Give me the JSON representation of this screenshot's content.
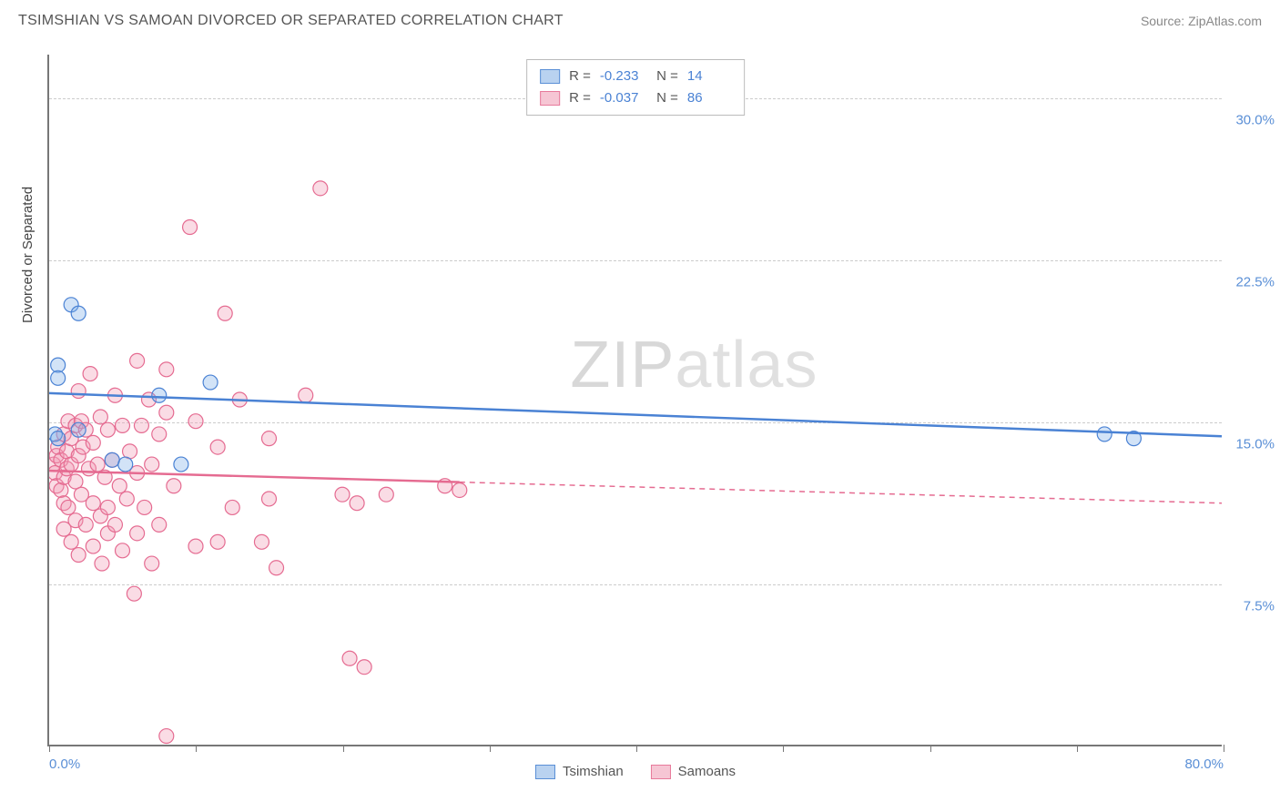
{
  "title": "TSIMSHIAN VS SAMOAN DIVORCED OR SEPARATED CORRELATION CHART",
  "source": "Source: ZipAtlas.com",
  "watermark_bold": "ZIP",
  "watermark_thin": "atlas",
  "chart": {
    "type": "scatter",
    "background_color": "#ffffff",
    "grid_color": "#cccccc",
    "axis_color": "#777777",
    "tick_label_color": "#5a8fd6",
    "text_color": "#444444",
    "ylabel": "Divorced or Separated",
    "xlim": [
      0,
      80
    ],
    "ylim": [
      0,
      32
    ],
    "yticks": [
      {
        "v": 7.5,
        "label": "7.5%"
      },
      {
        "v": 15.0,
        "label": "15.0%"
      },
      {
        "v": 22.5,
        "label": "22.5%"
      },
      {
        "v": 30.0,
        "label": "30.0%"
      }
    ],
    "xtick_positions": [
      0,
      10,
      20,
      30,
      40,
      50,
      60,
      70,
      80
    ],
    "xtick_labels": {
      "0": "0.0%",
      "80": "80.0%"
    },
    "stats_legend": [
      {
        "sw_fill": "#b9d2f0",
        "sw_border": "#5a8fd6",
        "r": "-0.233",
        "n": "14"
      },
      {
        "sw_fill": "#f6c6d4",
        "sw_border": "#e77a9b",
        "r": "-0.037",
        "n": "86"
      }
    ],
    "series_legend": [
      {
        "label": "Tsimshian",
        "sw_fill": "#b9d2f0",
        "sw_border": "#5a8fd6"
      },
      {
        "label": "Samoans",
        "sw_fill": "#f6c6d4",
        "sw_border": "#e77a9b"
      }
    ],
    "marker_radius": 8,
    "series": {
      "tsimshian": {
        "fill": "#7fb0e8",
        "stroke": "#4a82d4",
        "trend": {
          "x1": 0,
          "y1": 16.3,
          "x2": 80,
          "y2": 14.3,
          "solid_to_x": 80
        },
        "points": [
          [
            1.5,
            20.4
          ],
          [
            2.0,
            20.0
          ],
          [
            0.6,
            17.6
          ],
          [
            0.6,
            17.0
          ],
          [
            0.4,
            14.4
          ],
          [
            0.6,
            14.2
          ],
          [
            2.0,
            14.6
          ],
          [
            4.3,
            13.2
          ],
          [
            5.2,
            13.0
          ],
          [
            7.5,
            16.2
          ],
          [
            11.0,
            16.8
          ],
          [
            9.0,
            13.0
          ],
          [
            72.0,
            14.4
          ],
          [
            74.0,
            14.2
          ]
        ]
      },
      "samoans": {
        "fill": "#f19ab4",
        "stroke": "#e56b91",
        "trend": {
          "x1": 0,
          "y1": 12.7,
          "x2": 80,
          "y2": 11.2,
          "solid_to_x": 28
        },
        "points": [
          [
            0.3,
            13.0
          ],
          [
            0.4,
            12.6
          ],
          [
            0.5,
            13.4
          ],
          [
            0.5,
            12.0
          ],
          [
            0.6,
            13.8
          ],
          [
            0.8,
            13.2
          ],
          [
            0.8,
            11.8
          ],
          [
            1.0,
            14.4
          ],
          [
            1.0,
            12.4
          ],
          [
            1.0,
            11.2
          ],
          [
            1.0,
            10.0
          ],
          [
            1.2,
            13.6
          ],
          [
            1.2,
            12.8
          ],
          [
            1.3,
            15.0
          ],
          [
            1.3,
            11.0
          ],
          [
            1.5,
            14.2
          ],
          [
            1.5,
            13.0
          ],
          [
            1.5,
            9.4
          ],
          [
            1.8,
            14.8
          ],
          [
            1.8,
            12.2
          ],
          [
            1.8,
            10.4
          ],
          [
            2.0,
            13.4
          ],
          [
            2.0,
            16.4
          ],
          [
            2.0,
            8.8
          ],
          [
            2.2,
            15.0
          ],
          [
            2.2,
            11.6
          ],
          [
            2.3,
            13.8
          ],
          [
            2.5,
            14.6
          ],
          [
            2.5,
            10.2
          ],
          [
            2.7,
            12.8
          ],
          [
            2.8,
            17.2
          ],
          [
            3.0,
            14.0
          ],
          [
            3.0,
            11.2
          ],
          [
            3.0,
            9.2
          ],
          [
            3.3,
            13.0
          ],
          [
            3.5,
            15.2
          ],
          [
            3.5,
            10.6
          ],
          [
            3.6,
            8.4
          ],
          [
            3.8,
            12.4
          ],
          [
            4.0,
            14.6
          ],
          [
            4.0,
            11.0
          ],
          [
            4.0,
            9.8
          ],
          [
            4.3,
            13.2
          ],
          [
            4.5,
            16.2
          ],
          [
            4.5,
            10.2
          ],
          [
            4.8,
            12.0
          ],
          [
            5.0,
            14.8
          ],
          [
            5.0,
            9.0
          ],
          [
            5.3,
            11.4
          ],
          [
            5.5,
            13.6
          ],
          [
            5.8,
            7.0
          ],
          [
            6.0,
            17.8
          ],
          [
            6.0,
            12.6
          ],
          [
            6.0,
            9.8
          ],
          [
            6.3,
            14.8
          ],
          [
            6.5,
            11.0
          ],
          [
            6.8,
            16.0
          ],
          [
            7.0,
            13.0
          ],
          [
            7.0,
            8.4
          ],
          [
            7.5,
            14.4
          ],
          [
            7.5,
            10.2
          ],
          [
            8.0,
            17.4
          ],
          [
            8.0,
            15.4
          ],
          [
            8.0,
            0.4
          ],
          [
            8.5,
            12.0
          ],
          [
            9.6,
            24.0
          ],
          [
            10.0,
            15.0
          ],
          [
            10.0,
            9.2
          ],
          [
            11.5,
            13.8
          ],
          [
            11.5,
            9.4
          ],
          [
            12.0,
            20.0
          ],
          [
            12.5,
            11.0
          ],
          [
            13.0,
            16.0
          ],
          [
            14.5,
            9.4
          ],
          [
            15.0,
            14.2
          ],
          [
            15.0,
            11.4
          ],
          [
            15.5,
            8.2
          ],
          [
            17.5,
            16.2
          ],
          [
            18.5,
            25.8
          ],
          [
            20.0,
            11.6
          ],
          [
            20.5,
            4.0
          ],
          [
            21.0,
            11.2
          ],
          [
            21.5,
            3.6
          ],
          [
            23.0,
            11.6
          ],
          [
            27.0,
            12.0
          ],
          [
            28.0,
            11.8
          ]
        ]
      }
    }
  }
}
